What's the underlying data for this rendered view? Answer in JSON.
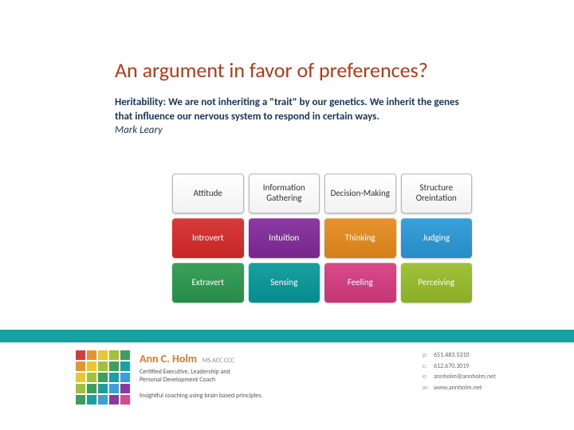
{
  "title": {
    "text": "An argument in favor of preferences?",
    "color": "#b23a17"
  },
  "body": {
    "bold_lines": "Heritability:  We are not inheriting a \"trait\" by our genetics.  We inherit the genes that influence our nervous system to respond in certain ways.",
    "attribution": "Mark Leary",
    "color": "#17365d"
  },
  "mbti_grid": {
    "headers": [
      "Attitude",
      "Information Gathering",
      "Decision-Making",
      "Structure Oreintation"
    ],
    "row1": [
      {
        "label": "Introvert",
        "color": "#d93a3a"
      },
      {
        "label": "Intuition",
        "color": "#8a3aa0"
      },
      {
        "label": "Thinking",
        "color": "#e8942e"
      },
      {
        "label": "Judging",
        "color": "#3aa0d9"
      }
    ],
    "row2": [
      {
        "label": "Extravert",
        "color": "#3aa05c"
      },
      {
        "label": "Sensing",
        "color": "#1aa0a0"
      },
      {
        "label": "Feeling",
        "color": "#d94a8a"
      },
      {
        "label": "Perceiving",
        "color": "#a0c13a"
      }
    ]
  },
  "teal_bar_color": "#1aa0a0",
  "footer": {
    "name": "Ann C. Holm",
    "name_color": "#d97a2e",
    "credentials": "MS ACC CCC",
    "subtitle1": "Certified Executive, Leadership and",
    "subtitle2": "Personal Development Coach",
    "tagline": "Insightful coaching using brain based principles.",
    "contacts": [
      {
        "lbl": "p:",
        "val": "651.483.5310"
      },
      {
        "lbl": "c:",
        "val": "612.670.3019"
      },
      {
        "lbl": "e:",
        "val": "annholm@annholm.net"
      },
      {
        "lbl": "w:",
        "val": "www.annholm.net"
      }
    ]
  },
  "logo_colors": [
    "#d93a3a",
    "#e8942e",
    "#e8c82e",
    "#a0c13a",
    "#3aa05c",
    "#e8942e",
    "#e8c82e",
    "#a0c13a",
    "#3aa05c",
    "#1aa0a0",
    "#e8c82e",
    "#a0c13a",
    "#3aa05c",
    "#1aa0a0",
    "#3aa0d9",
    "#a0c13a",
    "#3aa05c",
    "#1aa0a0",
    "#3aa0d9",
    "#8a3aa0",
    "#3aa05c",
    "#1aa0a0",
    "#3aa0d9",
    "#8a3aa0",
    "#d94a8a"
  ]
}
